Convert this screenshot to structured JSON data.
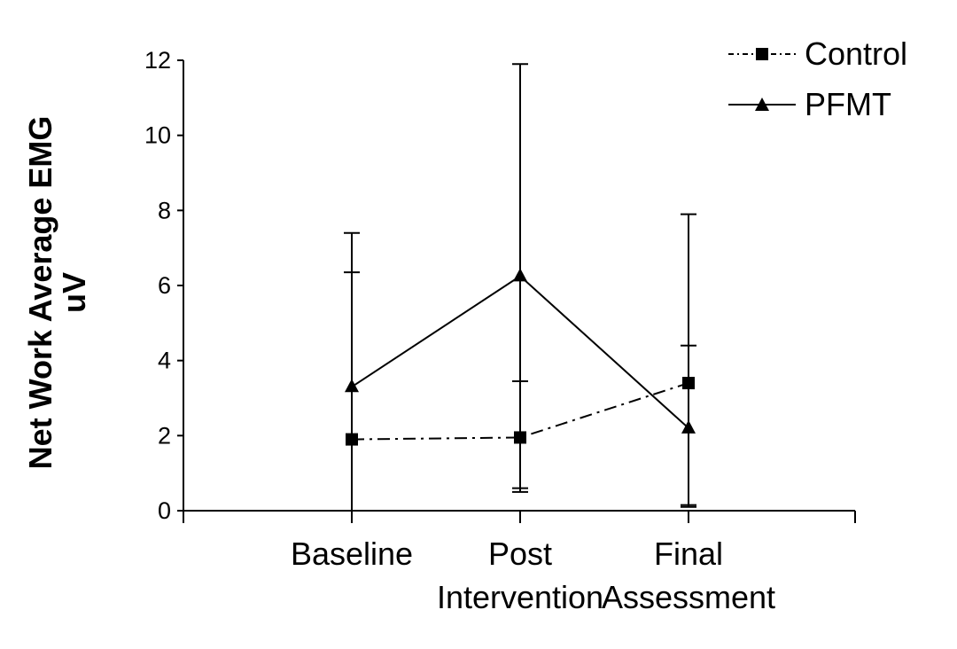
{
  "chart_data": {
    "type": "line",
    "ylabel_line1": "Net Work Average EMG",
    "ylabel_line2": "uV",
    "categories": [
      {
        "line1": "Baseline",
        "line2": ""
      },
      {
        "line1": "Post",
        "line2": "Intervention"
      },
      {
        "line1": "Final",
        "line2": "Assessment"
      }
    ],
    "ylim": [
      0,
      12
    ],
    "yticks": [
      "0",
      "2",
      "4",
      "6",
      "8",
      "10",
      "12"
    ],
    "series": [
      {
        "name": "Control",
        "marker": "square",
        "linestyle": "dash-dot",
        "values": [
          1.9,
          1.95,
          3.4
        ],
        "err_low": [
          0,
          0.6,
          0.1
        ],
        "err_high": [
          6.35,
          3.45,
          4.4
        ]
      },
      {
        "name": "PFMT",
        "marker": "triangle",
        "linestyle": "solid",
        "values": [
          3.3,
          6.25,
          2.2
        ],
        "err_low": [
          0,
          0.5,
          0.15
        ],
        "err_high": [
          7.4,
          11.9,
          7.9
        ]
      }
    ],
    "legend_position": "top-right"
  }
}
